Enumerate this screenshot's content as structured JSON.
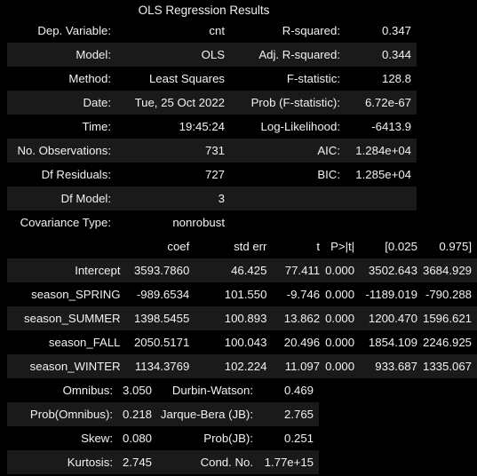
{
  "title": "OLS Regression Results",
  "summary_rows": [
    [
      "Dep. Variable:",
      "cnt",
      "R-squared:",
      "0.347"
    ],
    [
      "Model:",
      "OLS",
      "Adj. R-squared:",
      "0.344"
    ],
    [
      "Method:",
      "Least Squares",
      "F-statistic:",
      "128.8"
    ],
    [
      "Date:",
      "Tue, 25 Oct 2022",
      "Prob (F-statistic):",
      "6.72e-67"
    ],
    [
      "Time:",
      "19:45:24",
      "Log-Likelihood:",
      "-6413.9"
    ],
    [
      "No. Observations:",
      "731",
      "AIC:",
      "1.284e+04"
    ],
    [
      "Df Residuals:",
      "727",
      "BIC:",
      "1.285e+04"
    ],
    [
      "Df Model:",
      "3",
      "",
      ""
    ],
    [
      "Covariance Type:",
      "nonrobust",
      "",
      ""
    ]
  ],
  "coef_header": [
    "",
    "coef",
    "std err",
    "t",
    "P>|t|",
    "[0.025",
    "0.975]"
  ],
  "coef_rows": [
    [
      "Intercept",
      "3593.7860",
      "46.425",
      "77.411",
      "0.000",
      "3502.643",
      "3684.929"
    ],
    [
      "season_SPRING",
      "-989.6534",
      "101.550",
      "-9.746",
      "0.000",
      "-1189.019",
      "-790.288"
    ],
    [
      "season_SUMMER",
      "1398.5455",
      "100.893",
      "13.862",
      "0.000",
      "1200.470",
      "1596.621"
    ],
    [
      "season_FALL",
      "2050.5171",
      "100.043",
      "20.496",
      "0.000",
      "1854.109",
      "2246.925"
    ],
    [
      "season_WINTER",
      "1134.3769",
      "102.224",
      "11.097",
      "0.000",
      "933.687",
      "1335.067"
    ]
  ],
  "diag_rows": [
    [
      "Omnibus:",
      "3.050",
      "Durbin-Watson:",
      "0.469"
    ],
    [
      "Prob(Omnibus):",
      "0.218",
      "Jarque-Bera (JB):",
      "2.765"
    ],
    [
      "Skew:",
      "0.080",
      "Prob(JB):",
      "0.251"
    ],
    [
      "Kurtosis:",
      "2.745",
      "Cond. No.",
      "1.77e+15"
    ]
  ],
  "colors": {
    "background": "#000000",
    "text": "#f2f2f2",
    "alt_row": "#1a1a1a"
  }
}
